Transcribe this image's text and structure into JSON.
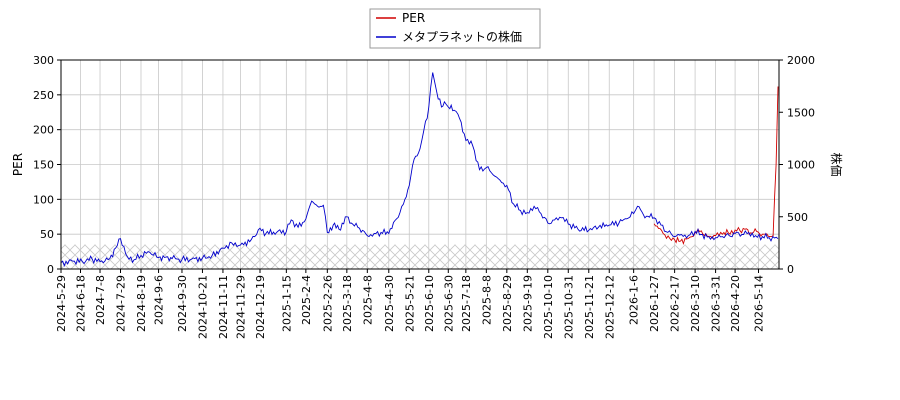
{
  "chart_data": {
    "type": "line",
    "title": "",
    "xlabel": "",
    "ylabel_left": "PER",
    "ylabel_right": "株価",
    "ylim_left": [
      0,
      300
    ],
    "ylim_right": [
      0,
      2000
    ],
    "yticks_left": [
      0,
      50,
      100,
      150,
      200,
      250,
      300
    ],
    "yticks_right": [
      0,
      500,
      1000,
      1500,
      2000
    ],
    "grid": true,
    "legend_position": "top-center",
    "x_start": "2024-05-29",
    "x_end": "2026-06-04",
    "xticks": [
      "2024-5-29",
      "2024-6-18",
      "2024-7-8",
      "2024-7-29",
      "2024-8-19",
      "2024-9-6",
      "2024-9-30",
      "2024-10-21",
      "2024-11-11",
      "2024-11-29",
      "2024-12-19",
      "2025-1-15",
      "2025-2-4",
      "2025-2-26",
      "2025-3-18",
      "2025-4-8",
      "2025-4-30",
      "2025-5-21",
      "2025-6-10",
      "2025-6-30",
      "2025-7-18",
      "2025-8-8",
      "2025-8-29",
      "2025-9-19",
      "2025-10-10",
      "2025-10-31",
      "2025-11-21",
      "2025-12-12",
      "2026-1-6",
      "2026-1-27",
      "2026-2-17",
      "2026-3-10",
      "2026-3-31",
      "2026-4-20",
      "2026-5-14"
    ],
    "series": [
      {
        "name": "PER",
        "color": "#d00000",
        "axis": "left",
        "points": [
          [
            "2026-01-27",
            65
          ],
          [
            "2026-02-02",
            58
          ],
          [
            "2026-02-07",
            49
          ],
          [
            "2026-02-12",
            44
          ],
          [
            "2026-02-17",
            42
          ],
          [
            "2026-02-23",
            40
          ],
          [
            "2026-03-01",
            43
          ],
          [
            "2026-03-05",
            46
          ],
          [
            "2026-03-10",
            52
          ],
          [
            "2026-03-13",
            57
          ],
          [
            "2026-03-18",
            50
          ],
          [
            "2026-03-24",
            47
          ],
          [
            "2026-03-31",
            48
          ],
          [
            "2026-04-07",
            50
          ],
          [
            "2026-04-13",
            52
          ],
          [
            "2026-04-20",
            56
          ],
          [
            "2026-04-25",
            55
          ],
          [
            "2026-04-30",
            57
          ],
          [
            "2026-05-06",
            52
          ],
          [
            "2026-05-12",
            54
          ],
          [
            "2026-05-18",
            50
          ],
          [
            "2026-05-24",
            47
          ],
          [
            "2026-05-29",
            48
          ],
          [
            "2026-06-01",
            150
          ],
          [
            "2026-06-03",
            262
          ]
        ]
      },
      {
        "name": "メタプラネットの株価",
        "color": "#0000cc",
        "axis": "right",
        "points": [
          [
            "2024-05-29",
            60
          ],
          [
            "2024-06-10",
            75
          ],
          [
            "2024-06-20",
            70
          ],
          [
            "2024-06-30",
            95
          ],
          [
            "2024-07-08",
            70
          ],
          [
            "2024-07-18",
            100
          ],
          [
            "2024-07-24",
            200
          ],
          [
            "2024-07-29",
            290
          ],
          [
            "2024-08-05",
            120
          ],
          [
            "2024-08-12",
            90
          ],
          [
            "2024-08-19",
            130
          ],
          [
            "2024-08-28",
            160
          ],
          [
            "2024-09-06",
            110
          ],
          [
            "2024-09-20",
            100
          ],
          [
            "2024-09-30",
            90
          ],
          [
            "2024-10-10",
            95
          ],
          [
            "2024-10-21",
            105
          ],
          [
            "2024-10-31",
            130
          ],
          [
            "2024-11-11",
            200
          ],
          [
            "2024-11-20",
            250
          ],
          [
            "2024-11-29",
            230
          ],
          [
            "2024-12-10",
            280
          ],
          [
            "2024-12-19",
            390
          ],
          [
            "2024-12-25",
            340
          ],
          [
            "2025-01-05",
            350
          ],
          [
            "2025-01-15",
            360
          ],
          [
            "2025-01-20",
            470
          ],
          [
            "2025-01-27",
            400
          ],
          [
            "2025-02-04",
            480
          ],
          [
            "2025-02-10",
            650
          ],
          [
            "2025-02-16",
            600
          ],
          [
            "2025-02-22",
            610
          ],
          [
            "2025-02-26",
            350
          ],
          [
            "2025-03-04",
            420
          ],
          [
            "2025-03-10",
            380
          ],
          [
            "2025-03-18",
            500
          ],
          [
            "2025-03-24",
            430
          ],
          [
            "2025-03-31",
            390
          ],
          [
            "2025-04-08",
            320
          ],
          [
            "2025-04-15",
            340
          ],
          [
            "2025-04-22",
            350
          ],
          [
            "2025-04-30",
            340
          ],
          [
            "2025-05-08",
            480
          ],
          [
            "2025-05-15",
            620
          ],
          [
            "2025-05-21",
            800
          ],
          [
            "2025-05-26",
            1050
          ],
          [
            "2025-06-01",
            1150
          ],
          [
            "2025-06-05",
            1330
          ],
          [
            "2025-06-10",
            1550
          ],
          [
            "2025-06-14",
            1880
          ],
          [
            "2025-06-18",
            1700
          ],
          [
            "2025-06-23",
            1550
          ],
          [
            "2025-06-26",
            1600
          ],
          [
            "2025-06-30",
            1550
          ],
          [
            "2025-07-06",
            1520
          ],
          [
            "2025-07-10",
            1480
          ],
          [
            "2025-07-18",
            1230
          ],
          [
            "2025-07-25",
            1180
          ],
          [
            "2025-08-01",
            950
          ],
          [
            "2025-08-08",
            970
          ],
          [
            "2025-08-15",
            900
          ],
          [
            "2025-08-22",
            850
          ],
          [
            "2025-08-29",
            800
          ],
          [
            "2025-09-05",
            620
          ],
          [
            "2025-09-12",
            560
          ],
          [
            "2025-09-19",
            540
          ],
          [
            "2025-09-26",
            600
          ],
          [
            "2025-10-03",
            530
          ],
          [
            "2025-10-10",
            440
          ],
          [
            "2025-10-17",
            470
          ],
          [
            "2025-10-24",
            490
          ],
          [
            "2025-10-31",
            430
          ],
          [
            "2025-11-10",
            380
          ],
          [
            "2025-11-21",
            370
          ],
          [
            "2025-12-01",
            400
          ],
          [
            "2025-12-12",
            420
          ],
          [
            "2025-12-22",
            440
          ],
          [
            "2025-12-30",
            480
          ],
          [
            "2026-01-06",
            530
          ],
          [
            "2026-01-10",
            600
          ],
          [
            "2026-01-16",
            520
          ],
          [
            "2026-01-27",
            490
          ],
          [
            "2026-02-03",
            420
          ],
          [
            "2026-02-10",
            350
          ],
          [
            "2026-02-17",
            310
          ],
          [
            "2026-02-24",
            330
          ],
          [
            "2026-03-03",
            320
          ],
          [
            "2026-03-10",
            360
          ],
          [
            "2026-03-16",
            330
          ],
          [
            "2026-03-24",
            310
          ],
          [
            "2026-03-31",
            300
          ],
          [
            "2026-04-07",
            310
          ],
          [
            "2026-04-14",
            320
          ],
          [
            "2026-04-20",
            340
          ],
          [
            "2026-04-27",
            330
          ],
          [
            "2026-05-04",
            350
          ],
          [
            "2026-05-11",
            320
          ],
          [
            "2026-05-18",
            310
          ],
          [
            "2026-05-25",
            300
          ],
          [
            "2026-06-03",
            290
          ]
        ]
      }
    ]
  }
}
